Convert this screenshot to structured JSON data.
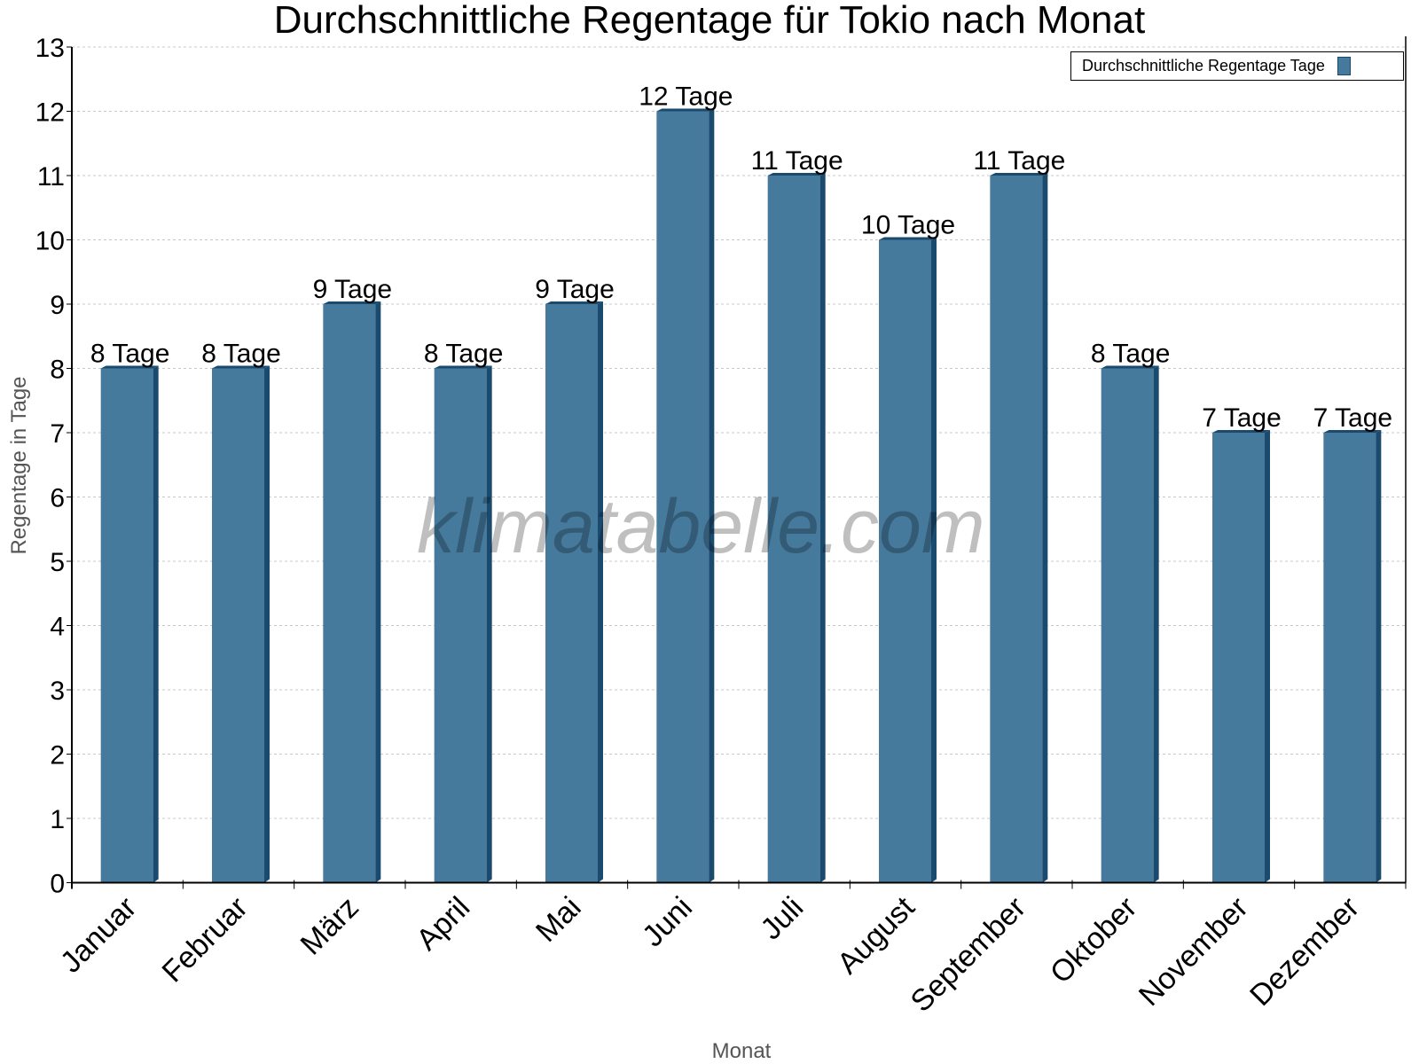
{
  "chart_data": {
    "type": "bar",
    "title": "Durchschnittliche Regentage für Tokio nach Monat",
    "xlabel": "Monat",
    "ylabel": "Regentage in Tage",
    "categories": [
      "Januar",
      "Februar",
      "März",
      "April",
      "Mai",
      "Juni",
      "Juli",
      "August",
      "September",
      "Oktober",
      "November",
      "Dezember"
    ],
    "series": [
      {
        "name": "Durchschnittliche Regentage Tage",
        "values": [
          8,
          8,
          9,
          8,
          9,
          12,
          11,
          10,
          11,
          8,
          7,
          7
        ],
        "color": "#467a9c",
        "side_color": "#1a4a6e"
      }
    ],
    "data_labels": [
      "8 Tage",
      "8 Tage",
      "9 Tage",
      "8 Tage",
      "9 Tage",
      "12 Tage",
      "11 Tage",
      "10 Tage",
      "11 Tage",
      "8 Tage",
      "7 Tage",
      "7 Tage"
    ],
    "ylim": [
      0,
      13
    ],
    "yticks": [
      0,
      1,
      2,
      3,
      4,
      5,
      6,
      7,
      8,
      9,
      10,
      11,
      12,
      13
    ],
    "grid": true,
    "legend": "top-right"
  },
  "watermark": "klimatabelle.com"
}
